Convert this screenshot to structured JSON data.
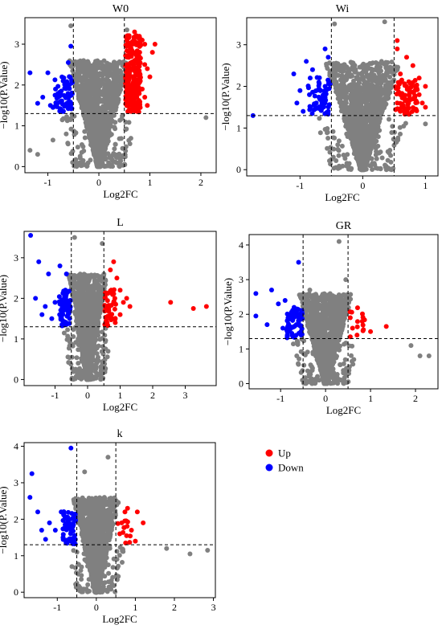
{
  "colors": {
    "up": "#ff0000",
    "down": "#0000ff",
    "ns": "#808080",
    "frame": "#000000"
  },
  "legend": {
    "items": [
      {
        "label": "Up",
        "color": "#ff0000"
      },
      {
        "label": "Down",
        "color": "#0000ff"
      }
    ]
  },
  "chart_data": [
    {
      "type": "scatter",
      "id": "w0",
      "title": "W0",
      "xlabel": "Log2FC",
      "ylabel": "−log10(P.Value)",
      "xlim": [
        -1.45,
        2.3
      ],
      "ylim": [
        -0.15,
        3.65
      ],
      "xticks": [
        -1,
        0,
        1,
        2
      ],
      "yticks": [
        0,
        1,
        2,
        3
      ],
      "vlines": [
        -0.5,
        0.5
      ],
      "hline": 1.3,
      "up": [
        [
          0.7,
          3.3
        ],
        [
          0.75,
          3.2
        ],
        [
          0.85,
          3.1
        ],
        [
          0.9,
          3.0
        ],
        [
          1.1,
          3.0
        ],
        [
          0.65,
          3.05
        ],
        [
          0.8,
          2.8
        ],
        [
          0.7,
          2.6
        ],
        [
          0.9,
          2.5
        ],
        [
          0.95,
          2.4
        ],
        [
          0.6,
          2.3
        ],
        [
          0.8,
          2.2
        ],
        [
          0.7,
          2.1
        ],
        [
          1.0,
          2.2
        ],
        [
          0.65,
          2.0
        ],
        [
          0.85,
          1.9
        ],
        [
          0.75,
          1.8
        ],
        [
          0.6,
          1.7
        ],
        [
          0.9,
          1.7
        ],
        [
          0.7,
          1.6
        ],
        [
          0.8,
          1.5
        ],
        [
          0.65,
          1.45
        ],
        [
          0.95,
          1.5
        ],
        [
          0.6,
          1.4
        ],
        [
          0.75,
          1.35
        ],
        [
          1.05,
          2.8
        ],
        [
          0.55,
          2.5
        ],
        [
          0.55,
          1.9
        ]
      ],
      "down": [
        [
          -1.35,
          2.3
        ],
        [
          -1.0,
          2.3
        ],
        [
          -0.55,
          2.95
        ],
        [
          -0.6,
          2.55
        ],
        [
          -0.7,
          2.1
        ],
        [
          -0.85,
          1.9
        ],
        [
          -1.1,
          1.7
        ],
        [
          -0.75,
          1.6
        ],
        [
          -0.65,
          1.5
        ],
        [
          -0.55,
          1.55
        ],
        [
          -1.2,
          1.55
        ],
        [
          -0.9,
          1.45
        ],
        [
          -0.6,
          1.42
        ],
        [
          -0.95,
          1.5
        ]
      ],
      "ns_peaks": [
        [
          -0.55,
          3.45
        ],
        [
          0.55,
          3.35
        ],
        [
          -0.3,
          2.6
        ],
        [
          0.35,
          2.5
        ],
        [
          2.1,
          1.2
        ],
        [
          -1.35,
          0.4
        ],
        [
          -1.2,
          0.3
        ],
        [
          -0.9,
          0.65
        ]
      ]
    },
    {
      "type": "scatter",
      "id": "wi",
      "title": "Wi",
      "xlabel": "Log2FC",
      "ylabel": "−log10(P.Value)",
      "xlim": [
        -1.85,
        1.2
      ],
      "ylim": [
        -0.15,
        3.65
      ],
      "xticks": [
        -1,
        0,
        1
      ],
      "yticks": [
        0,
        1,
        2,
        3
      ],
      "vlines": [
        -0.5,
        0.5
      ],
      "hline": 1.3,
      "up": [
        [
          0.55,
          3.1
        ],
        [
          0.55,
          2.9
        ],
        [
          0.7,
          2.7
        ],
        [
          0.8,
          2.5
        ],
        [
          0.6,
          2.3
        ],
        [
          0.9,
          2.2
        ],
        [
          1.0,
          2.0
        ],
        [
          0.7,
          2.0
        ],
        [
          0.6,
          1.8
        ],
        [
          0.8,
          1.7
        ],
        [
          0.95,
          1.6
        ],
        [
          0.65,
          1.5
        ],
        [
          0.85,
          1.45
        ],
        [
          0.75,
          1.9
        ],
        [
          1.0,
          1.5
        ],
        [
          0.55,
          1.6
        ],
        [
          0.7,
          1.4
        ],
        [
          0.6,
          1.4
        ],
        [
          0.9,
          1.8
        ]
      ],
      "down": [
        [
          -1.75,
          1.3
        ],
        [
          -1.1,
          2.3
        ],
        [
          -0.9,
          2.6
        ],
        [
          -0.8,
          2.4
        ],
        [
          -0.6,
          2.9
        ],
        [
          -0.55,
          2.7
        ],
        [
          -0.7,
          2.1
        ],
        [
          -0.6,
          2.0
        ],
        [
          -1.0,
          1.9
        ],
        [
          -0.85,
          1.8
        ],
        [
          -0.65,
          1.6
        ],
        [
          -1.05,
          1.6
        ],
        [
          -0.75,
          1.5
        ],
        [
          -0.55,
          1.4
        ],
        [
          -0.95,
          1.4
        ]
      ],
      "ns_peaks": [
        [
          -0.45,
          3.5
        ],
        [
          0.35,
          3.55
        ],
        [
          -0.3,
          2.5
        ],
        [
          0.3,
          2.6
        ],
        [
          1.0,
          1.1
        ]
      ]
    },
    {
      "type": "scatter",
      "id": "l",
      "title": "L",
      "xlabel": "Log2FC",
      "ylabel": "−log10(P.Value)",
      "xlim": [
        -1.95,
        3.95
      ],
      "ylim": [
        -0.15,
        3.65
      ],
      "xticks": [
        -1,
        0,
        1,
        2,
        3
      ],
      "yticks": [
        0,
        1,
        2,
        3
      ],
      "vlines": [
        -0.5,
        0.5
      ],
      "hline": 1.3,
      "up": [
        [
          2.55,
          1.9
        ],
        [
          3.25,
          1.75
        ],
        [
          3.65,
          1.8
        ],
        [
          0.8,
          2.9
        ],
        [
          0.7,
          2.7
        ],
        [
          0.9,
          2.5
        ],
        [
          1.0,
          2.2
        ],
        [
          1.1,
          1.9
        ],
        [
          0.8,
          1.9
        ],
        [
          1.3,
          1.8
        ],
        [
          0.65,
          1.7
        ],
        [
          1.0,
          1.6
        ],
        [
          0.75,
          1.5
        ],
        [
          0.85,
          1.4
        ],
        [
          0.6,
          1.4
        ],
        [
          1.2,
          2.0
        ]
      ],
      "down": [
        [
          -1.75,
          3.55
        ],
        [
          -1.5,
          2.9
        ],
        [
          -1.2,
          2.6
        ],
        [
          -0.85,
          2.8
        ],
        [
          -0.65,
          2.6
        ],
        [
          -1.6,
          2.0
        ],
        [
          -1.3,
          1.8
        ],
        [
          -1.0,
          1.9
        ],
        [
          -0.8,
          1.7
        ],
        [
          -0.6,
          1.6
        ],
        [
          -1.1,
          1.5
        ],
        [
          -0.7,
          1.4
        ],
        [
          -1.4,
          1.6
        ],
        [
          -0.55,
          1.5
        ]
      ],
      "ns_peaks": [
        [
          -0.4,
          3.5
        ],
        [
          0.45,
          3.35
        ],
        [
          -0.2,
          2.3
        ],
        [
          0.15,
          2.1
        ]
      ]
    },
    {
      "type": "scatter",
      "id": "gr",
      "title": "GR",
      "xlabel": "Log2FC",
      "ylabel": "−log10(P.Value)",
      "xlim": [
        -1.7,
        2.5
      ],
      "ylim": [
        -0.15,
        4.3
      ],
      "xticks": [
        -1,
        0,
        1,
        2
      ],
      "yticks": [
        0,
        1,
        2,
        3,
        4
      ],
      "vlines": [
        -0.5,
        0.5
      ],
      "hline": 1.3,
      "up": [
        [
          0.55,
          1.9
        ],
        [
          0.6,
          1.6
        ],
        [
          1.0,
          1.5
        ],
        [
          1.35,
          1.65
        ],
        [
          0.7,
          1.4
        ],
        [
          0.55,
          1.35
        ]
      ],
      "down": [
        [
          -1.55,
          2.6
        ],
        [
          -1.2,
          2.7
        ],
        [
          -0.6,
          3.5
        ],
        [
          -1.05,
          2.3
        ],
        [
          -0.9,
          2.4
        ],
        [
          -0.7,
          2.2
        ],
        [
          -1.55,
          1.95
        ],
        [
          -1.3,
          1.7
        ],
        [
          -0.8,
          1.9
        ],
        [
          -0.65,
          1.7
        ],
        [
          -0.55,
          1.5
        ],
        [
          -0.95,
          1.6
        ],
        [
          -0.75,
          1.45
        ]
      ],
      "ns_peaks": [
        [
          0.3,
          4.1
        ],
        [
          0.45,
          3.0
        ],
        [
          -0.35,
          2.7
        ],
        [
          1.9,
          1.1
        ],
        [
          2.1,
          0.8
        ],
        [
          2.3,
          0.8
        ]
      ]
    },
    {
      "type": "scatter",
      "id": "k",
      "title": "k",
      "xlabel": "Log2FC",
      "ylabel": "−log10(P.Value)",
      "xlim": [
        -1.85,
        3.05
      ],
      "ylim": [
        -0.15,
        4.1
      ],
      "xticks": [
        -1,
        0,
        1,
        2,
        3
      ],
      "yticks": [
        0,
        1,
        2,
        3,
        4
      ],
      "vlines": [
        -0.5,
        0.5
      ],
      "hline": 1.3,
      "up": [
        [
          0.8,
          2.3
        ],
        [
          1.05,
          2.2
        ],
        [
          1.2,
          1.9
        ],
        [
          0.65,
          1.9
        ],
        [
          0.9,
          1.7
        ],
        [
          0.6,
          1.6
        ],
        [
          1.0,
          1.4
        ],
        [
          0.75,
          1.35
        ]
      ],
      "down": [
        [
          -1.65,
          3.25
        ],
        [
          -1.7,
          2.6
        ],
        [
          -0.65,
          3.95
        ],
        [
          -1.5,
          2.2
        ],
        [
          -1.2,
          1.9
        ],
        [
          -0.9,
          2.2
        ],
        [
          -0.75,
          2.0
        ],
        [
          -1.05,
          1.7
        ],
        [
          -0.6,
          1.8
        ],
        [
          -0.85,
          1.5
        ],
        [
          -1.3,
          1.45
        ],
        [
          -0.65,
          1.4
        ],
        [
          -1.4,
          1.7
        ]
      ],
      "ns_peaks": [
        [
          0.3,
          3.7
        ],
        [
          -0.3,
          3.3
        ],
        [
          1.8,
          1.2
        ],
        [
          2.4,
          1.05
        ],
        [
          2.85,
          1.15
        ]
      ]
    }
  ]
}
